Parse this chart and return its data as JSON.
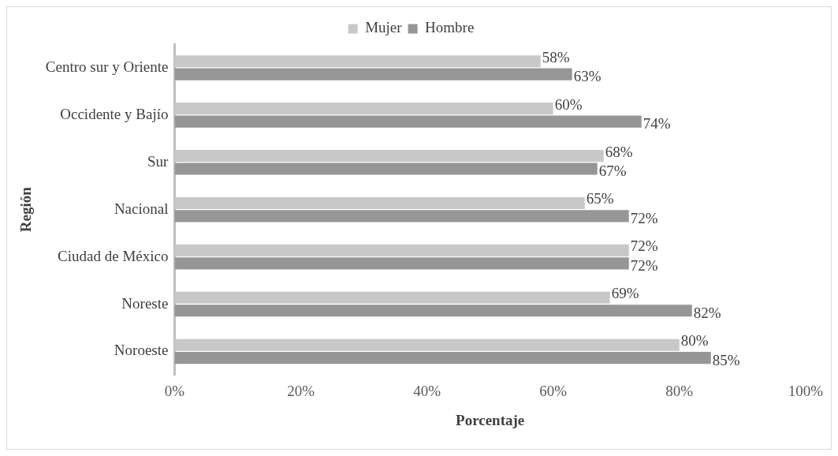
{
  "chart_data": {
    "type": "bar",
    "orientation": "horizontal",
    "ylabel": "Región",
    "xlabel": "Porcentaje",
    "categories": [
      "Centro sur y Oriente",
      "Occidente y Bajío",
      "Sur",
      "Nacional",
      "Ciudad de México",
      "Noreste",
      "Noroeste"
    ],
    "series": [
      {
        "name": "Mujer",
        "color": "#c8c8c8",
        "values": [
          58,
          60,
          68,
          65,
          72,
          69,
          80
        ],
        "value_labels": [
          "58%",
          "60%",
          "68%",
          "65%",
          "72%",
          "69%",
          "80%"
        ]
      },
      {
        "name": "Hombre",
        "color": "#969696",
        "values": [
          63,
          74,
          67,
          72,
          72,
          82,
          85
        ],
        "value_labels": [
          "63%",
          "74%",
          "67%",
          "72%",
          "72%",
          "82%",
          "85%"
        ]
      }
    ],
    "xlim": [
      0,
      100
    ],
    "xticks": [
      {
        "value": 0,
        "label": "0%"
      },
      {
        "value": 20,
        "label": "20%"
      },
      {
        "value": 40,
        "label": "40%"
      },
      {
        "value": 60,
        "label": "60%"
      },
      {
        "value": 80,
        "label": "80%"
      },
      {
        "value": 100,
        "label": "100%"
      }
    ],
    "grid": false,
    "legend": "top"
  }
}
